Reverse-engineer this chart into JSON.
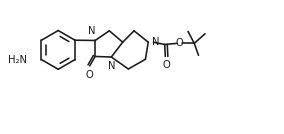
{
  "bg_color": "#ffffff",
  "line_color": "#1a1a1a",
  "line_width": 1.15,
  "font_size": 7.2,
  "figsize": [
    2.84,
    1.34
  ],
  "dpi": 100,
  "xlim": [
    0.0,
    10.0
  ],
  "ylim": [
    0.0,
    4.7
  ]
}
